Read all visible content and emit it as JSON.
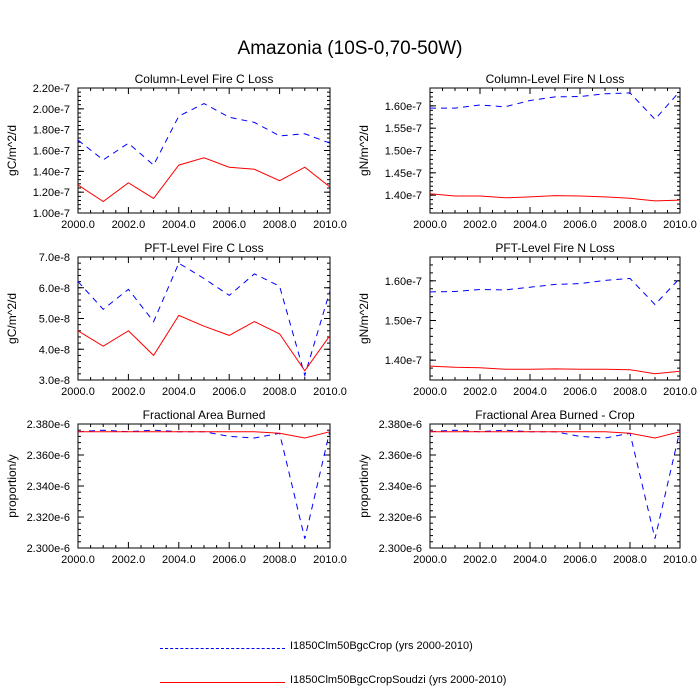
{
  "title": "Amazonia (10S-0,70-50W)",
  "legend": [
    {
      "label": "I1850Clm50BgcCrop (yrs 2000-2010)",
      "color": "#0000ff",
      "style": "dashed"
    },
    {
      "label": "I1850Clm50BgcCropSoudzi (yrs 2000-2010)",
      "color": "#ff0000",
      "style": "solid"
    }
  ],
  "chart_data": [
    {
      "type": "line",
      "title": "Column-Level Fire C Loss",
      "ylabel": "gC/m^2/d",
      "xlim": [
        2000,
        2010
      ],
      "ylim": [
        1e-07,
        2.2e-07
      ],
      "xticks": [
        2000,
        2002,
        2004,
        2006,
        2008,
        2010
      ],
      "xtick_labels": [
        "2000.0",
        "2002.0",
        "2004.0",
        "2006.0",
        "2008.0",
        "2010.0"
      ],
      "yticks": [
        1e-07,
        1.2e-07,
        1.4e-07,
        1.6e-07,
        1.8e-07,
        2e-07,
        2.2e-07
      ],
      "ytick_labels": [
        "1.00e-7",
        "1.20e-7",
        "1.40e-7",
        "1.60e-7",
        "1.80e-7",
        "2.00e-7",
        "2.20e-7"
      ],
      "x": [
        2000,
        2001,
        2002,
        2003,
        2004,
        2005,
        2006,
        2007,
        2008,
        2009,
        2010
      ],
      "series": [
        {
          "name": "I1850Clm50BgcCrop (yrs 2000-2010)",
          "color": "#0000ff",
          "style": "dashed",
          "values": [
            1.7e-07,
            1.51e-07,
            1.67e-07,
            1.46e-07,
            1.93e-07,
            2.05e-07,
            1.92e-07,
            1.87e-07,
            1.74e-07,
            1.76e-07,
            1.67e-07
          ]
        },
        {
          "name": "I1850Clm50BgcCropSoudzi (yrs 2000-2010)",
          "color": "#ff0000",
          "style": "solid",
          "values": [
            1.27e-07,
            1.11e-07,
            1.29e-07,
            1.14e-07,
            1.46e-07,
            1.53e-07,
            1.44e-07,
            1.42e-07,
            1.31e-07,
            1.44e-07,
            1.25e-07
          ]
        }
      ]
    },
    {
      "type": "line",
      "title": "Column-Level Fire N Loss",
      "ylabel": "gN/m^2/d",
      "xlim": [
        2000,
        2010
      ],
      "ylim": [
        1.36e-07,
        1.64e-07
      ],
      "xticks": [
        2000,
        2002,
        2004,
        2006,
        2008,
        2010
      ],
      "xtick_labels": [
        "2000.0",
        "2002.0",
        "2004.0",
        "2006.0",
        "2008.0",
        "2010.0"
      ],
      "yticks": [
        1.4e-07,
        1.45e-07,
        1.5e-07,
        1.55e-07,
        1.6e-07
      ],
      "ytick_labels": [
        "1.40e-7",
        "1.45e-7",
        "1.50e-7",
        "1.55e-7",
        "1.60e-7"
      ],
      "x": [
        2000,
        2001,
        2002,
        2003,
        2004,
        2005,
        2006,
        2007,
        2008,
        2009,
        2010
      ],
      "series": [
        {
          "name": "I1850Clm50BgcCrop (yrs 2000-2010)",
          "color": "#0000ff",
          "style": "dashed",
          "values": [
            1.595e-07,
            1.595e-07,
            1.602e-07,
            1.598e-07,
            1.612e-07,
            1.62e-07,
            1.621e-07,
            1.627e-07,
            1.629e-07,
            1.57e-07,
            1.633e-07
          ]
        },
        {
          "name": "I1850Clm50BgcCropSoudzi (yrs 2000-2010)",
          "color": "#ff0000",
          "style": "solid",
          "values": [
            1.403e-07,
            1.398e-07,
            1.398e-07,
            1.394e-07,
            1.396e-07,
            1.399e-07,
            1.398e-07,
            1.396e-07,
            1.393e-07,
            1.387e-07,
            1.389e-07
          ]
        }
      ]
    },
    {
      "type": "line",
      "title": "PFT-Level Fire C Loss",
      "ylabel": "gC/m^2/d",
      "xlim": [
        2000,
        2010
      ],
      "ylim": [
        3e-08,
        7e-08
      ],
      "xticks": [
        2000,
        2002,
        2004,
        2006,
        2008,
        2010
      ],
      "xtick_labels": [
        "2000.0",
        "2002.0",
        "2004.0",
        "2006.0",
        "2008.0",
        "2010.0"
      ],
      "yticks": [
        3e-08,
        4e-08,
        5e-08,
        6e-08,
        7e-08
      ],
      "ytick_labels": [
        "3.0e-8",
        "4.0e-8",
        "5.0e-8",
        "6.0e-8",
        "7.0e-8"
      ],
      "x": [
        2000,
        2001,
        2002,
        2003,
        2004,
        2005,
        2006,
        2007,
        2008,
        2009,
        2010
      ],
      "series": [
        {
          "name": "I1850Clm50BgcCrop (yrs 2000-2010)",
          "color": "#0000ff",
          "style": "dashed",
          "values": [
            6.2e-08,
            5.3e-08,
            5.95e-08,
            4.9e-08,
            6.8e-08,
            6.3e-08,
            5.75e-08,
            6.45e-08,
            6.05e-08,
            3.15e-08,
            5.9e-08
          ]
        },
        {
          "name": "I1850Clm50BgcCropSoudzi (yrs 2000-2010)",
          "color": "#ff0000",
          "style": "solid",
          "values": [
            4.6e-08,
            4.1e-08,
            4.6e-08,
            3.8e-08,
            5.1e-08,
            4.75e-08,
            4.45e-08,
            4.9e-08,
            4.5e-08,
            3.3e-08,
            4.45e-08
          ]
        }
      ]
    },
    {
      "type": "line",
      "title": "PFT-Level Fire N Loss",
      "ylabel": "gN/m^2/d",
      "xlim": [
        2000,
        2010
      ],
      "ylim": [
        1.35e-07,
        1.66e-07
      ],
      "xticks": [
        2000,
        2002,
        2004,
        2006,
        2008,
        2010
      ],
      "xtick_labels": [
        "2000.0",
        "2002.0",
        "2004.0",
        "2006.0",
        "2008.0",
        "2010.0"
      ],
      "yticks": [
        1.4e-07,
        1.5e-07,
        1.6e-07
      ],
      "ytick_labels": [
        "1.40e-7",
        "1.50e-7",
        "1.60e-7"
      ],
      "x": [
        2000,
        2001,
        2002,
        2003,
        2004,
        2005,
        2006,
        2007,
        2008,
        2009,
        2010
      ],
      "series": [
        {
          "name": "I1850Clm50BgcCrop (yrs 2000-2010)",
          "color": "#0000ff",
          "style": "dashed",
          "values": [
            1.572e-07,
            1.573e-07,
            1.578e-07,
            1.577e-07,
            1.584e-07,
            1.591e-07,
            1.593e-07,
            1.601e-07,
            1.606e-07,
            1.54e-07,
            1.607e-07
          ]
        },
        {
          "name": "I1850Clm50BgcCropSoudzi (yrs 2000-2010)",
          "color": "#ff0000",
          "style": "solid",
          "values": [
            1.385e-07,
            1.382e-07,
            1.381e-07,
            1.377e-07,
            1.377e-07,
            1.378e-07,
            1.377e-07,
            1.377e-07,
            1.376e-07,
            1.366e-07,
            1.372e-07
          ]
        }
      ]
    },
    {
      "type": "line",
      "title": "Fractional Area Burned",
      "ylabel": "proportion/y",
      "xlim": [
        2000,
        2010
      ],
      "ylim": [
        2.3e-06,
        2.38e-06
      ],
      "xticks": [
        2000,
        2002,
        2004,
        2006,
        2008,
        2010
      ],
      "xtick_labels": [
        "2000.0",
        "2002.0",
        "2004.0",
        "2006.0",
        "2008.0",
        "2010.0"
      ],
      "yticks": [
        2.3e-06,
        2.32e-06,
        2.34e-06,
        2.36e-06,
        2.38e-06
      ],
      "ytick_labels": [
        "2.300e-6",
        "2.320e-6",
        "2.340e-6",
        "2.360e-6",
        "2.380e-6"
      ],
      "x": [
        2000,
        2001,
        2002,
        2003,
        2004,
        2005,
        2006,
        2007,
        2008,
        2009,
        2010
      ],
      "series": [
        {
          "name": "I1850Clm50BgcCrop (yrs 2000-2010)",
          "color": "#0000ff",
          "style": "dashed",
          "values": [
            2.375e-06,
            2.376e-06,
            2.375e-06,
            2.376e-06,
            2.375e-06,
            2.375e-06,
            2.372e-06,
            2.371e-06,
            2.374e-06,
            2.306e-06,
            2.376e-06
          ]
        },
        {
          "name": "I1850Clm50BgcCropSoudzi (yrs 2000-2010)",
          "color": "#ff0000",
          "style": "solid",
          "values": [
            2.375e-06,
            2.375e-06,
            2.375e-06,
            2.375e-06,
            2.375e-06,
            2.375e-06,
            2.375e-06,
            2.375e-06,
            2.374e-06,
            2.371e-06,
            2.375e-06
          ]
        }
      ]
    },
    {
      "type": "line",
      "title": "Fractional Area Burned - Crop",
      "ylabel": "proportion/y",
      "xlim": [
        2000,
        2010
      ],
      "ylim": [
        2.3e-06,
        2.38e-06
      ],
      "xticks": [
        2000,
        2002,
        2004,
        2006,
        2008,
        2010
      ],
      "xtick_labels": [
        "2000.0",
        "2002.0",
        "2004.0",
        "2006.0",
        "2008.0",
        "2010.0"
      ],
      "yticks": [
        2.3e-06,
        2.32e-06,
        2.34e-06,
        2.36e-06,
        2.38e-06
      ],
      "ytick_labels": [
        "2.300e-6",
        "2.320e-6",
        "2.340e-6",
        "2.360e-6",
        "2.380e-6"
      ],
      "x": [
        2000,
        2001,
        2002,
        2003,
        2004,
        2005,
        2006,
        2007,
        2008,
        2009,
        2010
      ],
      "series": [
        {
          "name": "I1850Clm50BgcCrop (yrs 2000-2010)",
          "color": "#0000ff",
          "style": "dashed",
          "values": [
            2.375e-06,
            2.376e-06,
            2.375e-06,
            2.376e-06,
            2.375e-06,
            2.375e-06,
            2.372e-06,
            2.371e-06,
            2.374e-06,
            2.306e-06,
            2.376e-06
          ]
        },
        {
          "name": "I1850Clm50BgcCropSoudzi (yrs 2000-2010)",
          "color": "#ff0000",
          "style": "solid",
          "values": [
            2.375e-06,
            2.375e-06,
            2.375e-06,
            2.375e-06,
            2.375e-06,
            2.375e-06,
            2.375e-06,
            2.375e-06,
            2.374e-06,
            2.371e-06,
            2.375e-06
          ]
        }
      ]
    }
  ]
}
